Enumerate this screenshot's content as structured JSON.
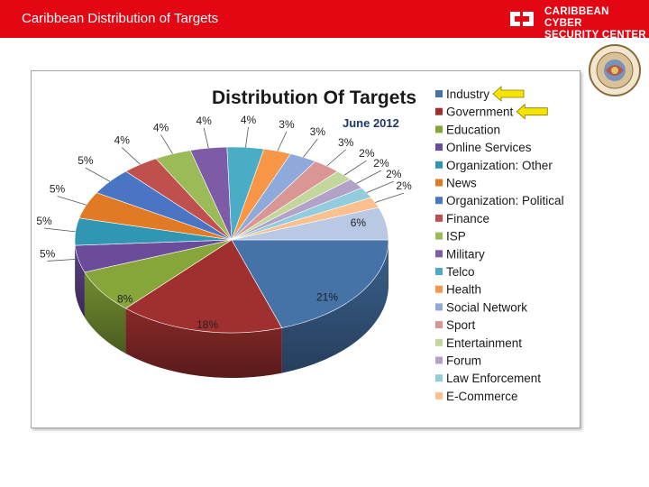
{
  "header": {
    "title": "Caribbean Distribution of Targets",
    "logo_line1": "CARIBBEAN CYBER",
    "logo_line2": "SECURITY CENTER",
    "brand_color": "#e30613"
  },
  "chart_data": {
    "type": "pie",
    "title": "Distribution Of Targets",
    "subtitle": "June 2012",
    "legend_position": "right",
    "style": "3d",
    "series": [
      {
        "name": "Industry",
        "value": 21,
        "label": "21%",
        "color": "#4572a7"
      },
      {
        "name": "Government",
        "value": 18,
        "label": "18%",
        "color": "#a03030"
      },
      {
        "name": "Education",
        "value": 8,
        "label": "8%",
        "color": "#86a63a"
      },
      {
        "name": "Online Services",
        "value": 5,
        "label": "5%",
        "color": "#6b4c9a"
      },
      {
        "name": "Organization: Other",
        "value": 5,
        "label": "5%",
        "color": "#3196b2"
      },
      {
        "name": "News",
        "value": 5,
        "label": "5%",
        "color": "#e07a24"
      },
      {
        "name": "Organization: Political",
        "value": 5,
        "label": "5%",
        "color": "#4a74c4"
      },
      {
        "name": "Finance",
        "value": 4,
        "label": "4%",
        "color": "#c0504d"
      },
      {
        "name": "ISP",
        "value": 4,
        "label": "4%",
        "color": "#9bbb59"
      },
      {
        "name": "Military",
        "value": 4,
        "label": "4%",
        "color": "#7d5ba6"
      },
      {
        "name": "Telco",
        "value": 4,
        "label": "4%",
        "color": "#4bacc6"
      },
      {
        "name": "Health",
        "value": 3,
        "label": "3%",
        "color": "#f79646"
      },
      {
        "name": "Social Network",
        "value": 3,
        "label": "3%",
        "color": "#8eaadb"
      },
      {
        "name": "Sport",
        "value": 3,
        "label": "3%",
        "color": "#d99694"
      },
      {
        "name": "Entertainment",
        "value": 2,
        "label": "2%",
        "color": "#c3d69b"
      },
      {
        "name": "Forum",
        "value": 2,
        "label": "2%",
        "color": "#b3a2c7"
      },
      {
        "name": "Law Enforcement",
        "value": 2,
        "label": "2%",
        "color": "#93cddd"
      },
      {
        "name": "E-Commerce",
        "value": 2,
        "label": "2%",
        "color": "#fac090"
      },
      {
        "name": "",
        "value": 6,
        "label": "6%",
        "color": "#b9c9e4"
      }
    ],
    "highlighted": [
      "Industry",
      "Government"
    ],
    "highlight_color": "#f5e400"
  }
}
